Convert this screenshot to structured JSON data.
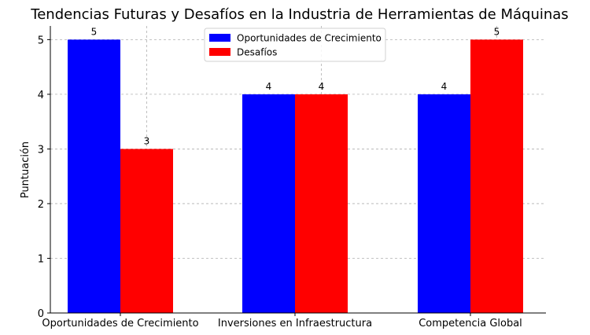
{
  "chart_data": {
    "type": "bar",
    "title": "Tendencias Futuras y Desafíos en la Industria de Herramientas de Máquinas",
    "xlabel": "",
    "ylabel": "Puntuación",
    "categories": [
      "Oportunidades de Crecimiento",
      "Inversiones en Infraestructura",
      "Competencia Global"
    ],
    "series": [
      {
        "name": "Oportunidades de Crecimiento",
        "color": "#0000ff",
        "values": [
          5,
          4,
          4
        ]
      },
      {
        "name": "Desafíos",
        "color": "#ff0000",
        "values": [
          3,
          4,
          5
        ]
      }
    ],
    "ylim": [
      0,
      5.25
    ],
    "yticks": [
      0,
      1,
      2,
      3,
      4,
      5
    ],
    "grid": true,
    "legend_position": "top-center"
  }
}
